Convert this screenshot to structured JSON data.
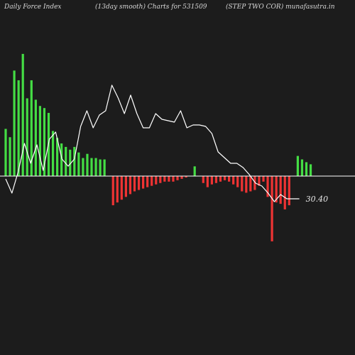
{
  "header": {
    "left": "Daily Force  Index",
    "center": "(13day smooth) Charts for 531509",
    "right": "(STEP TWO COR) munafasutra.in"
  },
  "colors": {
    "background": "#1c1c1c",
    "positive_bar": "#44dd44",
    "negative_bar": "#ee3333",
    "line": "#ffffff",
    "zero_line": "#ffffff"
  },
  "chart_data": {
    "type": "bar",
    "title": "",
    "zero_line": true,
    "ylim": [
      -100,
      180
    ],
    "bars": [
      68,
      56,
      152,
      138,
      176,
      112,
      138,
      110,
      101,
      98,
      91,
      65,
      55,
      47,
      42,
      38,
      42,
      34,
      26,
      32,
      26,
      26,
      24,
      24,
      0,
      -42,
      -38,
      -34,
      -30,
      -26,
      -22,
      -20,
      -18,
      -16,
      -14,
      -12,
      -10,
      -8,
      -8,
      -8,
      -6,
      -4,
      -2,
      0,
      14,
      0,
      -10,
      -16,
      -12,
      -10,
      -8,
      -6,
      -8,
      -12,
      -16,
      -22,
      -24,
      -22,
      -20,
      -14,
      -8,
      -30,
      -94,
      -38,
      -40,
      -48,
      -42,
      0,
      29,
      24,
      20,
      17
    ],
    "line": [
      -4,
      -24,
      6,
      46,
      18,
      44,
      8,
      52,
      62,
      24,
      14,
      24,
      70,
      92,
      68,
      86,
      92,
      128,
      110,
      88,
      114,
      88,
      68,
      68,
      88,
      80,
      78,
      76,
      92,
      68,
      72,
      72,
      70,
      60,
      34,
      26,
      18,
      18,
      12,
      2,
      -10,
      -14,
      -24,
      -36,
      -26,
      -32,
      -32,
      -32
    ],
    "last_value": "30.40"
  }
}
